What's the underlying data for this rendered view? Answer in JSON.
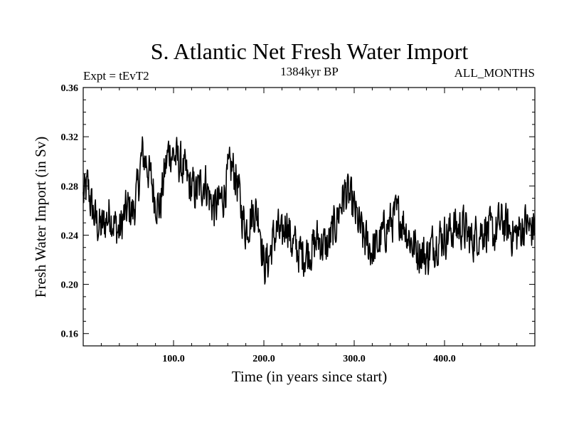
{
  "chart_data": {
    "type": "line",
    "title": "S. Atlantic Net Fresh Water Import",
    "subtitle_left": "Expt = tEvT2",
    "subtitle_center": "1384kyr BP",
    "subtitle_right": "ALL_MONTHS",
    "xlabel": "Time (in years since start)",
    "ylabel": "Fresh Water Import (in Sv)",
    "xlim": [
      0,
      500
    ],
    "ylim": [
      0.15,
      0.36
    ],
    "x_ticks": [
      100,
      200,
      300,
      400
    ],
    "x_tick_labels": [
      "100.0",
      "200.0",
      "300.0",
      "400.0"
    ],
    "y_ticks": [
      0.16,
      0.2,
      0.24,
      0.28,
      0.32,
      0.36
    ],
    "y_tick_labels": [
      "0.16",
      "0.20",
      "0.24",
      "0.28",
      "0.32",
      "0.36"
    ],
    "series": [
      {
        "name": "Net Fresh Water Import",
        "color": "#000000",
        "x": [
          0,
          5,
          10,
          15,
          20,
          25,
          30,
          35,
          40,
          45,
          50,
          55,
          60,
          65,
          70,
          75,
          80,
          85,
          90,
          95,
          100,
          105,
          110,
          115,
          120,
          125,
          130,
          135,
          140,
          145,
          150,
          155,
          160,
          165,
          170,
          175,
          180,
          185,
          190,
          195,
          200,
          205,
          210,
          215,
          220,
          225,
          230,
          235,
          240,
          245,
          250,
          255,
          260,
          265,
          270,
          275,
          280,
          285,
          290,
          295,
          300,
          305,
          310,
          315,
          320,
          325,
          330,
          335,
          340,
          345,
          350,
          355,
          360,
          365,
          370,
          375,
          380,
          385,
          390,
          395,
          400,
          405,
          410,
          415,
          420,
          425,
          430,
          435,
          440,
          445,
          450,
          455,
          460,
          465,
          470,
          475,
          480,
          485,
          490,
          495,
          500
        ],
        "values": [
          0.27,
          0.28,
          0.26,
          0.25,
          0.245,
          0.252,
          0.258,
          0.248,
          0.242,
          0.255,
          0.262,
          0.258,
          0.275,
          0.305,
          0.3,
          0.285,
          0.27,
          0.262,
          0.29,
          0.31,
          0.305,
          0.3,
          0.295,
          0.285,
          0.278,
          0.275,
          0.28,
          0.285,
          0.27,
          0.262,
          0.265,
          0.272,
          0.288,
          0.295,
          0.285,
          0.26,
          0.245,
          0.255,
          0.26,
          0.255,
          0.215,
          0.22,
          0.235,
          0.245,
          0.235,
          0.255,
          0.235,
          0.23,
          0.225,
          0.225,
          0.228,
          0.23,
          0.238,
          0.232,
          0.23,
          0.24,
          0.25,
          0.265,
          0.275,
          0.27,
          0.26,
          0.248,
          0.238,
          0.232,
          0.228,
          0.23,
          0.238,
          0.245,
          0.25,
          0.255,
          0.255,
          0.25,
          0.24,
          0.232,
          0.228,
          0.226,
          0.222,
          0.23,
          0.235,
          0.238,
          0.24,
          0.242,
          0.246,
          0.245,
          0.248,
          0.24,
          0.236,
          0.24,
          0.244,
          0.246,
          0.242,
          0.24,
          0.248,
          0.25,
          0.245,
          0.242,
          0.24,
          0.245,
          0.25,
          0.244,
          0.248
        ]
      }
    ]
  }
}
